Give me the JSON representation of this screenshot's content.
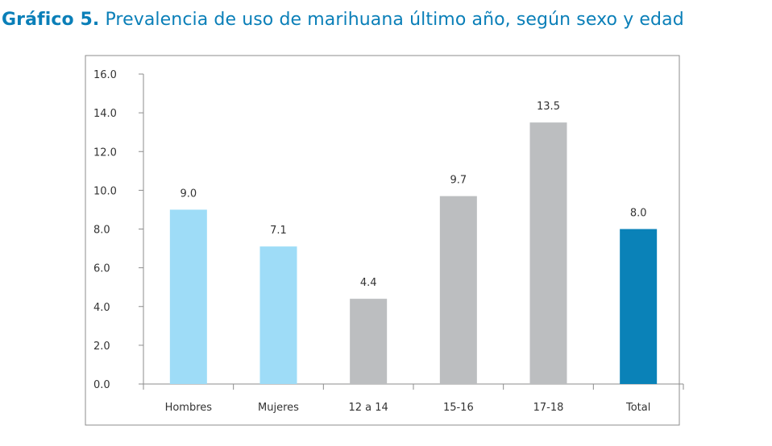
{
  "title_prefix": "Gráfico 5.",
  "title_text": "Prevalencia de uso de marihuana último año, según sexo y edad",
  "chart_data": {
    "type": "bar",
    "categories": [
      "Hombres",
      "Mujeres",
      "12 a 14",
      "15-16",
      "17-18",
      "Total"
    ],
    "values": [
      9.0,
      7.1,
      4.4,
      9.7,
      13.5,
      8.0
    ],
    "value_labels": [
      "9.0",
      "7.1",
      "4.4",
      "9.7",
      "13.5",
      "8.0"
    ],
    "colors": [
      "#9edcf7",
      "#9edcf7",
      "#bcbec0",
      "#bcbec0",
      "#bcbec0",
      "#0a82b8"
    ],
    "ylim": [
      0,
      16
    ],
    "yticks": [
      0,
      2,
      4,
      6,
      8,
      10,
      12,
      14,
      16
    ],
    "ytick_labels": [
      "0.0",
      "2.0",
      "4.0",
      "6.0",
      "8.0",
      "10.0",
      "12.0",
      "14.0",
      "16.0"
    ],
    "xlabel": "",
    "ylabel": "",
    "grid": false,
    "legend": "none"
  }
}
